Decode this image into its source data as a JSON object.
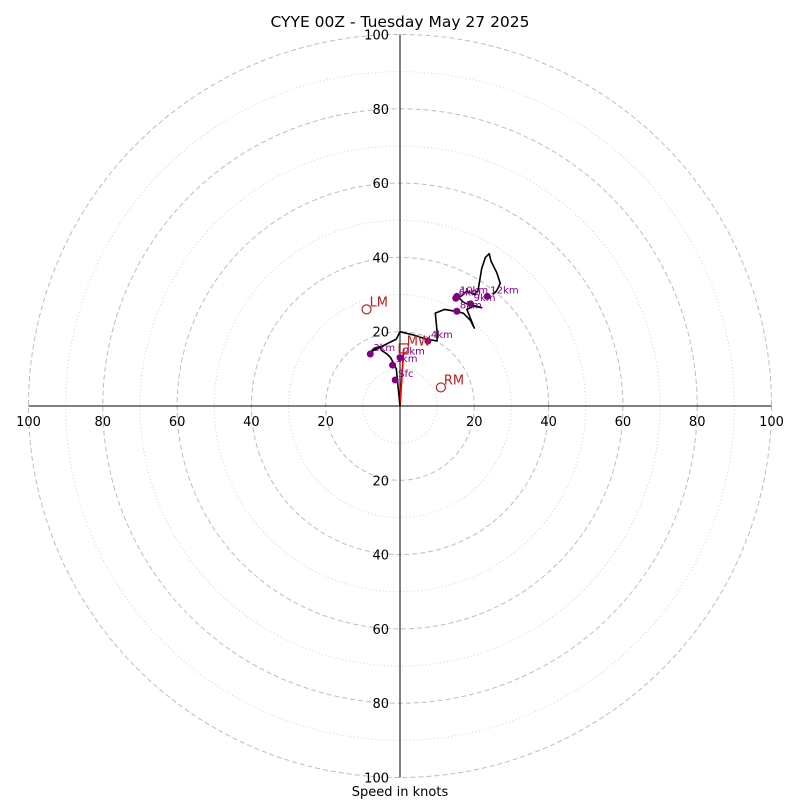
{
  "chart_data": {
    "type": "hodograph",
    "title": "CYYE 00Z - Tuesday May 27 2025",
    "xlabel": "Speed in knots",
    "range_kt": 100,
    "rings_major": [
      20,
      40,
      60,
      80,
      100
    ],
    "rings_minor": [
      10,
      30,
      50,
      70,
      90
    ],
    "tick_values": [
      20,
      40,
      60,
      80,
      100
    ],
    "tick_labels": [
      "20",
      "40",
      "60",
      "80",
      "100"
    ],
    "grid": true,
    "colors": {
      "ring": "#bdbdbd",
      "profile": "#000000",
      "level_marker": "#800080",
      "storm_motion": "#b22222",
      "shear_vector": "#ff0000"
    },
    "profile_uv": [
      [
        0,
        0
      ],
      [
        -0.3,
        3
      ],
      [
        -0.7,
        7
      ],
      [
        -1,
        10
      ],
      [
        -2,
        12
      ],
      [
        -2.5,
        13
      ],
      [
        -3.5,
        14
      ],
      [
        -5,
        15
      ],
      [
        -5.5,
        16
      ],
      [
        -7,
        15.5
      ],
      [
        -8,
        14.5
      ],
      [
        -7,
        15
      ],
      [
        -5,
        16
      ],
      [
        -3,
        17
      ],
      [
        -1,
        18
      ],
      [
        0,
        20
      ],
      [
        4,
        19
      ],
      [
        7,
        18
      ],
      [
        10,
        17.5
      ],
      [
        10,
        18.5
      ],
      [
        10,
        20
      ],
      [
        9.5,
        25
      ],
      [
        12,
        26
      ],
      [
        15,
        25.5
      ],
      [
        17,
        25
      ],
      [
        19,
        23
      ],
      [
        20,
        21
      ],
      [
        18,
        26
      ],
      [
        20,
        27
      ],
      [
        22,
        26.5
      ],
      [
        19,
        27
      ],
      [
        17,
        28
      ],
      [
        16,
        29
      ],
      [
        15,
        28.5
      ],
      [
        17,
        30
      ],
      [
        18,
        31
      ],
      [
        20,
        30
      ],
      [
        21,
        31
      ],
      [
        22,
        37
      ],
      [
        23,
        40
      ],
      [
        24,
        41
      ],
      [
        24.5,
        39
      ],
      [
        26,
        36
      ],
      [
        27,
        33
      ],
      [
        26,
        31
      ],
      [
        25,
        30
      ]
    ],
    "levels": [
      {
        "label": "Sfc",
        "u": -1.3,
        "v": 7
      },
      {
        "label": "1km",
        "u": -2,
        "v": 11
      },
      {
        "label": "2km",
        "u": 0,
        "v": 13
      },
      {
        "label": "3km",
        "u": -8,
        "v": 14
      },
      {
        "label": "4km",
        "u": 7.5,
        "v": 17.5
      },
      {
        "label": "6km",
        "u": 15,
        "v": 29
      },
      {
        "label": "8km",
        "u": 15.3,
        "v": 25.5
      },
      {
        "label": "9km",
        "u": 19,
        "v": 27.5
      },
      {
        "label": "10km",
        "u": 15.3,
        "v": 29.5
      },
      {
        "label": "12km",
        "u": 23.5,
        "v": 29.5
      }
    ],
    "storm_motions": [
      {
        "label": "RM",
        "u": 11,
        "v": 5
      },
      {
        "label": "LM",
        "u": -9,
        "v": 26
      },
      {
        "label": "MW",
        "u": 1,
        "v": 15.5
      }
    ],
    "shear_vector": [
      [
        0,
        0
      ],
      [
        1,
        15.5
      ]
    ]
  }
}
